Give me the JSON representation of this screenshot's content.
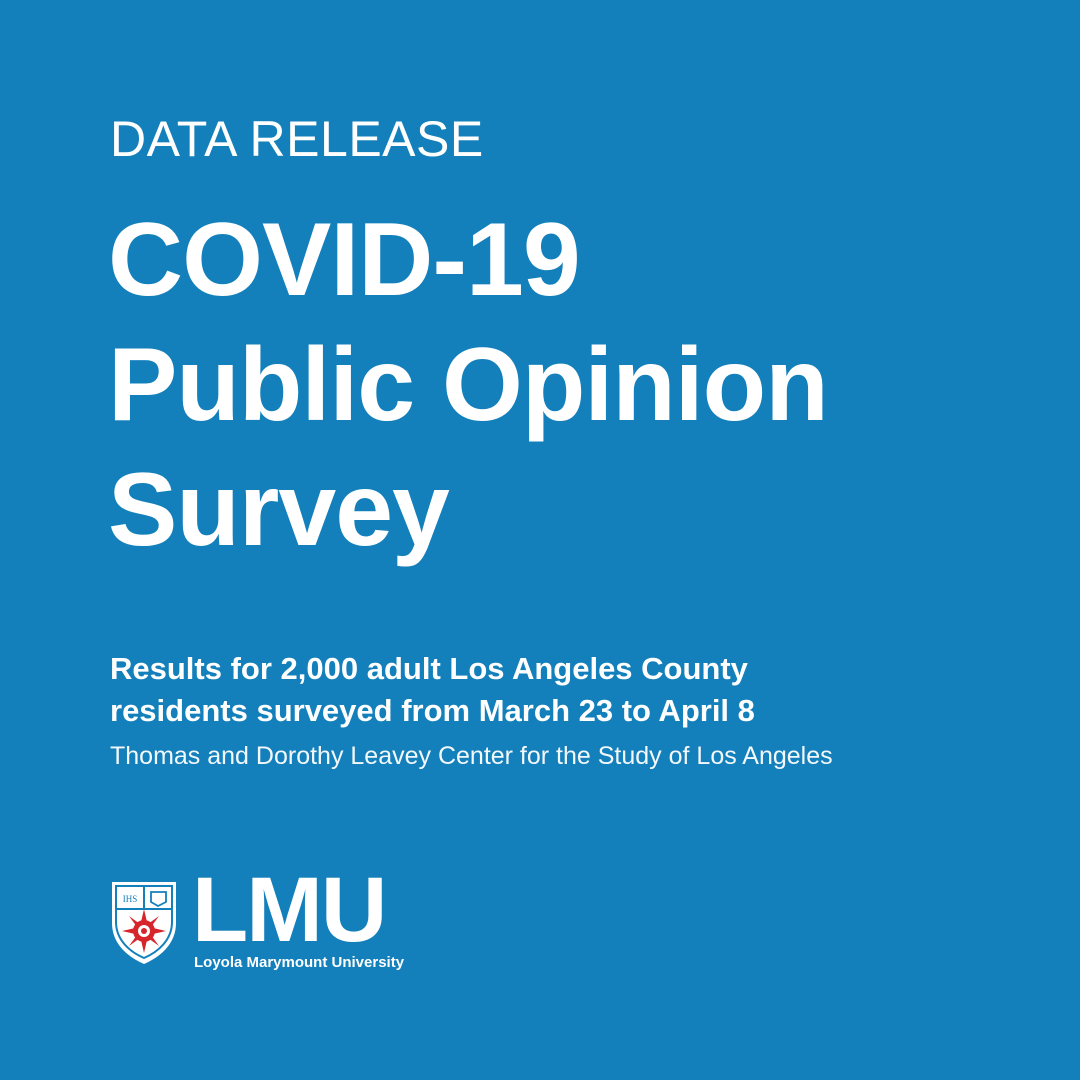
{
  "colors": {
    "background": "#1380bb",
    "text": "#ffffff",
    "crest_red": "#d7262b"
  },
  "header": {
    "kicker": "DATA RELEASE",
    "title_lines": [
      "COVID-19",
      "Public Opinion",
      "Survey"
    ]
  },
  "details": {
    "summary_lines": [
      "Results for 2,000 adult Los Angeles County",
      "residents surveyed from March 23 to April 8"
    ],
    "credit": "Thomas and Dorothy Leavey Center for the Study of Los Angeles"
  },
  "logo": {
    "crest_icon": "university-crest-icon",
    "crest_text": "IHS",
    "wordmark": "LMU",
    "university_name": "Loyola Marymount University"
  }
}
